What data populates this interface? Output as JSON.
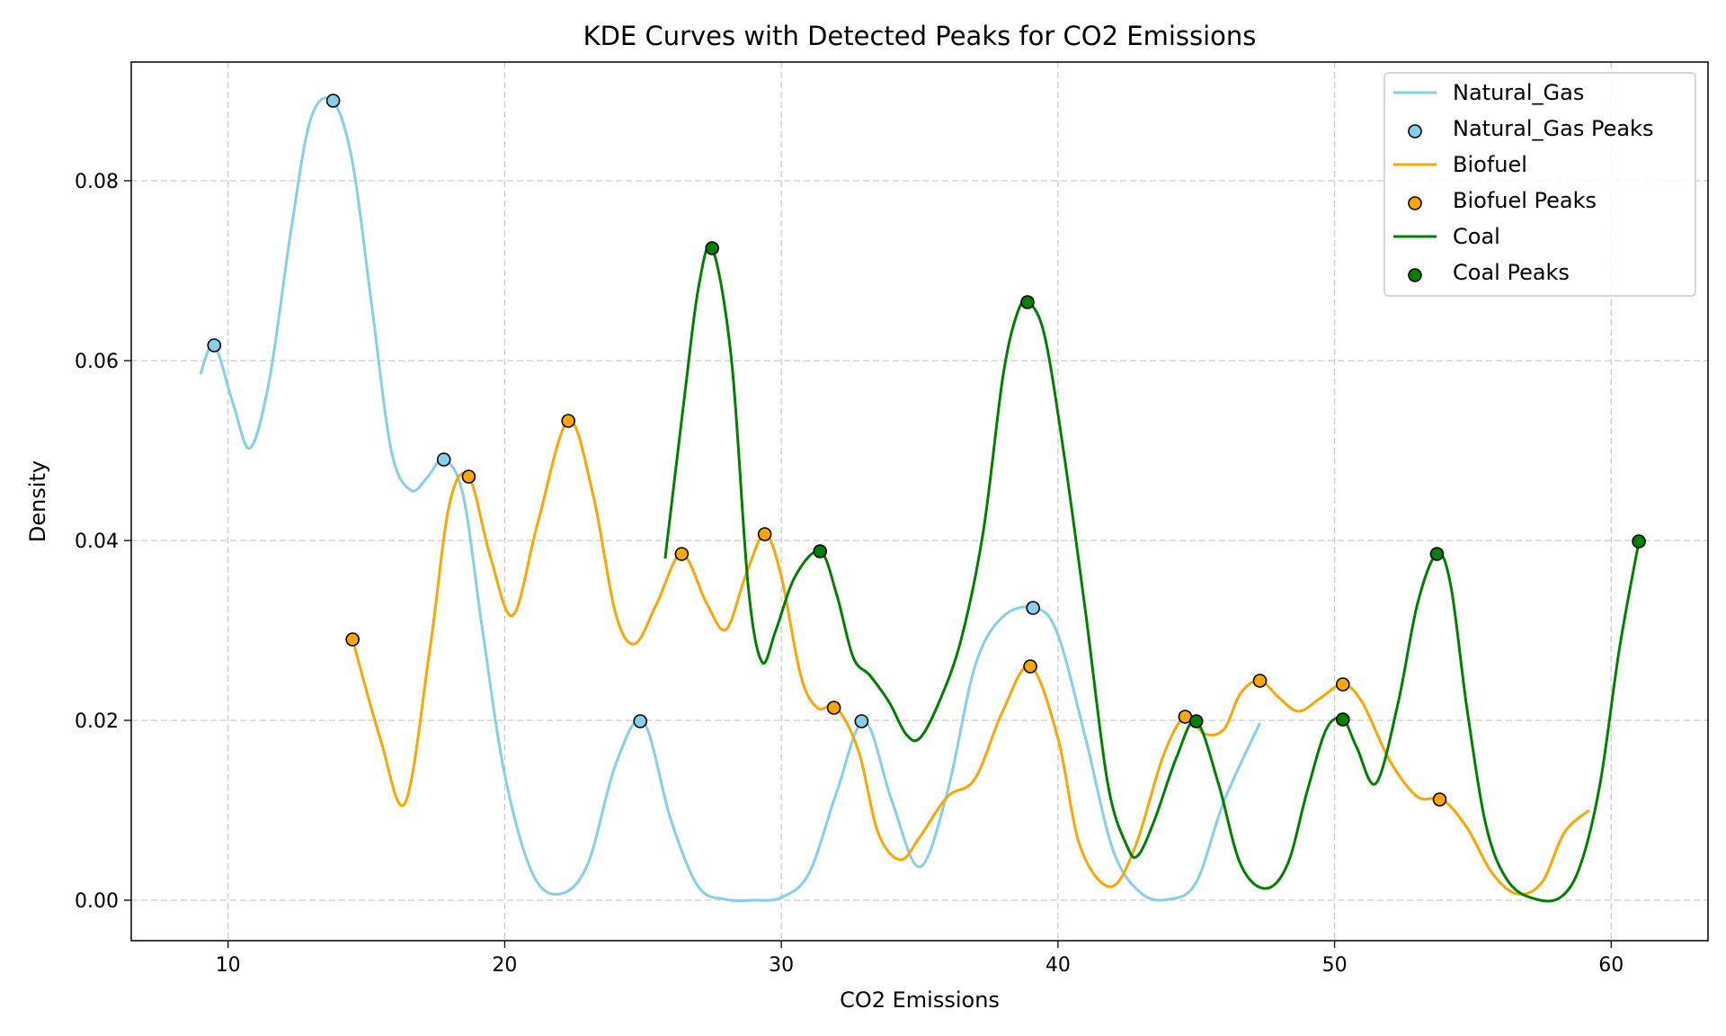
{
  "chart_data": {
    "type": "line",
    "title": "KDE Curves with Detected Peaks for CO2 Emissions",
    "xlabel": "CO2 Emissions",
    "ylabel": "Density",
    "xlim": [
      6.5,
      63.5
    ],
    "ylim": [
      -0.0045,
      0.0932
    ],
    "xticks": [
      10,
      20,
      30,
      40,
      50,
      60
    ],
    "yticks": [
      0.0,
      0.02,
      0.04,
      0.06,
      0.08
    ],
    "ytick_labels": [
      "0.00",
      "0.02",
      "0.04",
      "0.06",
      "0.08"
    ],
    "grid": true,
    "legend_position": "top-right",
    "series": [
      {
        "name": "Natural_Gas",
        "peaks_name": "Natural_Gas Peaks",
        "color": "#87ceeb",
        "x": [
          9.0,
          9.5,
          10.2,
          10.8,
          11.5,
          12.3,
          13.0,
          13.8,
          14.5,
          15.2,
          15.9,
          16.6,
          17.2,
          17.8,
          18.5,
          19.2,
          20.0,
          21.0,
          22.0,
          23.0,
          24.0,
          25.0,
          26.0,
          27.0,
          28.0,
          29.0,
          30.0,
          31.0,
          32.0,
          33.0,
          34.0,
          35.0,
          36.0,
          37.0,
          38.0,
          39.2,
          40.0,
          41.0,
          42.0,
          43.0,
          44.0,
          45.0,
          46.0,
          47.3
        ],
        "y": [
          0.0585,
          0.0617,
          0.055,
          0.0503,
          0.058,
          0.075,
          0.087,
          0.0888,
          0.082,
          0.066,
          0.05,
          0.0456,
          0.047,
          0.049,
          0.045,
          0.03,
          0.014,
          0.003,
          0.0007,
          0.004,
          0.015,
          0.0199,
          0.009,
          0.0015,
          0.0001,
          0.0,
          0.0003,
          0.003,
          0.012,
          0.0199,
          0.011,
          0.0037,
          0.012,
          0.026,
          0.0315,
          0.0325,
          0.0295,
          0.018,
          0.0055,
          0.0008,
          0.0001,
          0.002,
          0.011,
          0.0197
        ],
        "peaks_x": [
          9.5,
          13.8,
          17.8,
          24.9,
          32.9,
          39.1
        ],
        "peaks_y": [
          0.0617,
          0.0889,
          0.049,
          0.0199,
          0.0199,
          0.0325
        ]
      },
      {
        "name": "Biofuel",
        "peaks_name": "Biofuel Peaks",
        "color": "#ffa500",
        "x": [
          14.5,
          15.5,
          16.4,
          17.3,
          18.0,
          18.7,
          19.5,
          20.3,
          21.2,
          22.3,
          23.2,
          24.0,
          24.7,
          25.5,
          26.4,
          27.3,
          28.0,
          28.7,
          29.4,
          30.0,
          30.7,
          31.3,
          32.0,
          32.8,
          33.5,
          34.3,
          35.0,
          36.0,
          37.0,
          38.0,
          39.0,
          40.0,
          40.8,
          41.9,
          42.8,
          43.8,
          44.6,
          45.3,
          46.0,
          46.6,
          47.3,
          48.0,
          48.7,
          49.5,
          50.3,
          51.0,
          52.0,
          53.0,
          53.9,
          54.8,
          55.7,
          56.6,
          57.5,
          58.3,
          59.2
        ],
        "y": [
          0.029,
          0.018,
          0.0108,
          0.028,
          0.044,
          0.0471,
          0.038,
          0.0317,
          0.042,
          0.0533,
          0.045,
          0.032,
          0.0285,
          0.033,
          0.0385,
          0.033,
          0.0301,
          0.036,
          0.0407,
          0.036,
          0.025,
          0.0214,
          0.0214,
          0.0165,
          0.0075,
          0.0045,
          0.007,
          0.0115,
          0.0135,
          0.021,
          0.026,
          0.018,
          0.006,
          0.0015,
          0.006,
          0.016,
          0.0204,
          0.0185,
          0.019,
          0.023,
          0.0244,
          0.0225,
          0.021,
          0.0225,
          0.024,
          0.022,
          0.0155,
          0.0115,
          0.0112,
          0.008,
          0.003,
          0.0007,
          0.002,
          0.0075,
          0.01
        ],
        "peaks_x": [
          14.5,
          18.7,
          22.3,
          26.4,
          29.4,
          31.9,
          39.0,
          44.6,
          47.3,
          50.3,
          53.8
        ],
        "peaks_y": [
          0.029,
          0.0471,
          0.0533,
          0.0385,
          0.0407,
          0.0214,
          0.026,
          0.0204,
          0.0244,
          0.024,
          0.0112
        ]
      },
      {
        "name": "Coal",
        "peaks_name": "Coal Peaks",
        "color": "#008000",
        "x": [
          25.8,
          26.5,
          27.0,
          27.5,
          28.2,
          28.8,
          29.3,
          29.8,
          30.5,
          31.4,
          32.0,
          32.6,
          33.2,
          33.9,
          34.5,
          35.0,
          35.7,
          36.5,
          37.3,
          38.0,
          38.5,
          38.9,
          39.5,
          40.2,
          41.0,
          41.8,
          42.5,
          42.9,
          43.5,
          44.3,
          45.0,
          45.8,
          46.6,
          47.5,
          48.3,
          49.0,
          49.7,
          50.3,
          50.8,
          51.5,
          52.3,
          53.0,
          53.7,
          54.2,
          54.8,
          55.5,
          56.3,
          57.3,
          58.2,
          58.9,
          59.6,
          60.3,
          61.0
        ],
        "y": [
          0.038,
          0.056,
          0.068,
          0.0725,
          0.06,
          0.035,
          0.0265,
          0.03,
          0.036,
          0.0388,
          0.034,
          0.027,
          0.025,
          0.022,
          0.0185,
          0.018,
          0.022,
          0.029,
          0.041,
          0.058,
          0.065,
          0.0665,
          0.063,
          0.05,
          0.032,
          0.013,
          0.006,
          0.005,
          0.009,
          0.016,
          0.0199,
          0.013,
          0.004,
          0.0013,
          0.004,
          0.012,
          0.019,
          0.0201,
          0.017,
          0.013,
          0.022,
          0.033,
          0.0385,
          0.035,
          0.021,
          0.008,
          0.002,
          0.0001,
          0.0004,
          0.004,
          0.013,
          0.028,
          0.0399
        ],
        "peaks_x": [
          27.5,
          31.4,
          38.9,
          45.0,
          50.3,
          53.7,
          61.0
        ],
        "peaks_y": [
          0.0725,
          0.0388,
          0.0665,
          0.0199,
          0.0201,
          0.0385,
          0.0399
        ]
      }
    ]
  }
}
